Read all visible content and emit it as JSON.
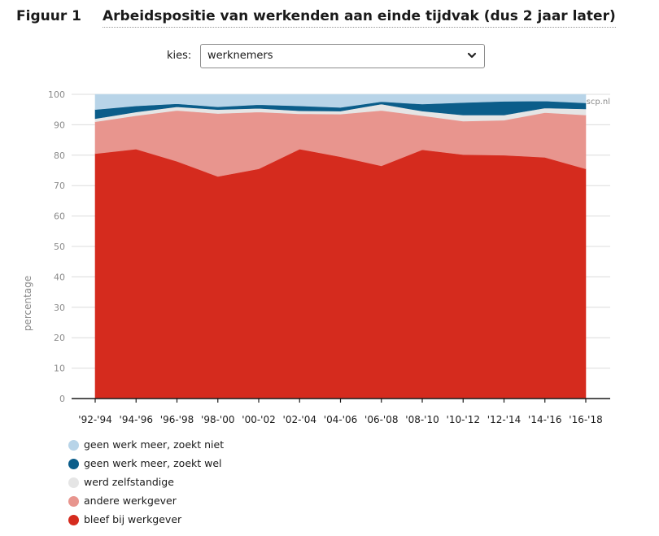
{
  "figure": {
    "label": "Figuur 1",
    "title": "Arbeidspositie van werkenden aan einde tijdvak (dus 2 jaar later)"
  },
  "selector": {
    "label": "kies:",
    "value": "werknemers",
    "icon": "chevron-down-icon"
  },
  "chart_data": {
    "type": "area",
    "stacked": true,
    "categories": [
      "'92-'94",
      "'94-'96",
      "'96-'98",
      "'98-'00",
      "'00-'02",
      "'02-'04",
      "'04-'06",
      "'06-'08",
      "'08-'10",
      "'10-'12",
      "'12-'14",
      "'14-'16",
      "'16-'18"
    ],
    "ylabel": "percentage",
    "ylim": [
      0,
      100
    ],
    "yticks": [
      0,
      10,
      20,
      30,
      40,
      50,
      60,
      70,
      80,
      90,
      100
    ],
    "grid": true,
    "watermark": "scp.nl",
    "legend_position": "bottom-left",
    "series": [
      {
        "name": "bleef bij werkgever",
        "color": "#d52b1e",
        "values": [
          80.5,
          82.0,
          78.0,
          73.0,
          75.5,
          82.0,
          79.5,
          76.5,
          81.8,
          80.2,
          80.0,
          79.3,
          75.5
        ]
      },
      {
        "name": "andere werkgever",
        "color": "#e8958e",
        "values": [
          10.5,
          11.0,
          16.7,
          20.7,
          18.7,
          11.6,
          14.0,
          18.2,
          11.2,
          11.0,
          11.5,
          14.7,
          17.7
        ]
      },
      {
        "name": "werd zelfstandige",
        "color": "#e5e5e5",
        "values": [
          1.0,
          1.2,
          1.2,
          1.3,
          1.2,
          1.0,
          1.0,
          2.1,
          1.5,
          2.0,
          1.7,
          1.5,
          2.0
        ]
      },
      {
        "name": "geen werk meer, zoekt wel",
        "color": "#0b5d8a",
        "values": [
          3.0,
          2.0,
          1.0,
          0.9,
          1.2,
          1.6,
          1.2,
          0.8,
          2.3,
          4.1,
          4.5,
          2.3,
          2.0
        ]
      },
      {
        "name": "geen werk meer, zoekt niet",
        "color": "#b8d4e8",
        "values": [
          5.0,
          3.8,
          3.1,
          4.1,
          3.4,
          3.8,
          4.3,
          2.4,
          3.2,
          2.7,
          2.3,
          2.2,
          2.8
        ]
      }
    ]
  }
}
